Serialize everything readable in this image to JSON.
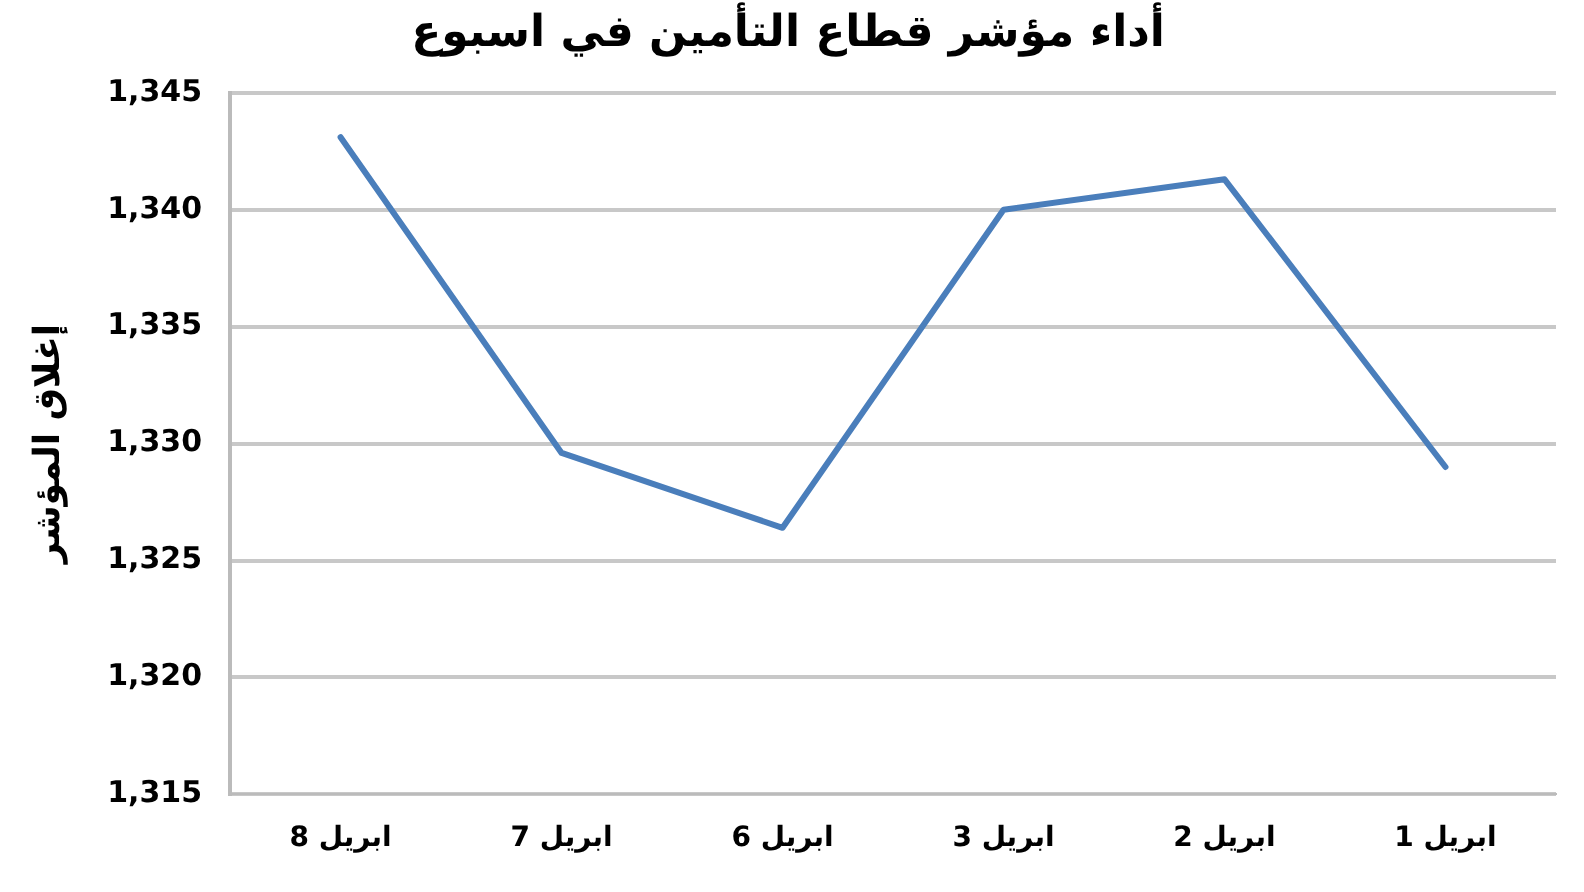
{
  "chart_data": {
    "type": "line",
    "title": "أداء مؤشر قطاع التأمين في اسبوع",
    "ylabel": "إغلاق المؤشر",
    "categories": [
      "8 ابريل",
      "7 ابريل",
      "6 ابريل",
      "3 ابريل",
      "2 ابريل",
      "1 ابريل"
    ],
    "series": [
      {
        "color": "#4a7ebb",
        "values": [
          1343.1,
          1329.6,
          1326.4,
          1340.0,
          1341.3,
          1329.0
        ]
      }
    ],
    "ylim": [
      1315,
      1345
    ],
    "yticks": [
      {
        "value": 1315,
        "label": "1,315"
      },
      {
        "value": 1320,
        "label": "1,320"
      },
      {
        "value": 1325,
        "label": "1,325"
      },
      {
        "value": 1330,
        "label": "1,330"
      },
      {
        "value": 1335,
        "label": "1,335"
      },
      {
        "value": 1340,
        "label": "1,340"
      },
      {
        "value": 1345,
        "label": "1,345"
      }
    ],
    "grid": "y",
    "legend": false,
    "marker": "none",
    "line_style": "solid"
  }
}
